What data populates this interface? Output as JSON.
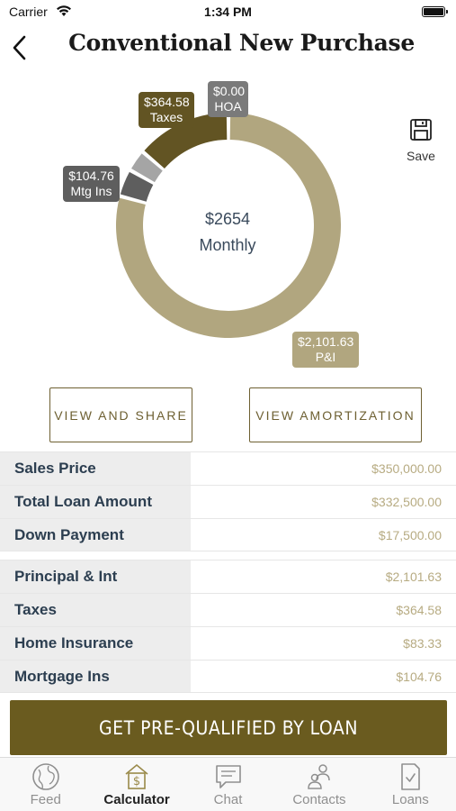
{
  "status_bar": {
    "carrier": "Carrier",
    "time": "1:34 PM"
  },
  "nav": {
    "title": "Conventional New Purchase"
  },
  "save": {
    "label": "Save"
  },
  "chart_data": {
    "type": "pie",
    "center_amount": "$2654",
    "center_label": "Monthly",
    "slices": [
      {
        "name": "P&I",
        "value": 2101.63,
        "label": "$2,101.63",
        "color": "#b1a67f"
      },
      {
        "name": "Mtg Ins",
        "value": 104.76,
        "label": "$104.76",
        "color": "#5e5e5e"
      },
      {
        "name": "Home Insurance",
        "value": 83.33,
        "label": "",
        "color": "#a5a5a5"
      },
      {
        "name": "Taxes",
        "value": 364.58,
        "label": "$364.58",
        "color": "#625423"
      },
      {
        "name": "HOA",
        "value": 0.0,
        "label": "$0.00",
        "color": "#7a7a7a"
      }
    ],
    "callouts": {
      "taxes": {
        "amount": "$364.58",
        "name": "Taxes"
      },
      "hoa": {
        "amount": "$0.00",
        "name": "HOA"
      },
      "mtg_ins": {
        "amount": "$104.76",
        "name": "Mtg Ins"
      },
      "pi": {
        "amount": "$2,101.63",
        "name": "P&I"
      }
    }
  },
  "buttons": {
    "view_share": "VIEW AND SHARE",
    "view_amortization": "VIEW AMORTIZATION"
  },
  "loan_table": [
    {
      "label": "Sales Price",
      "value": "$350,000.00"
    },
    {
      "label": "Total Loan Amount",
      "value": "$332,500.00"
    },
    {
      "label": "Down Payment",
      "value": "$17,500.00"
    }
  ],
  "payment_table": [
    {
      "label": "Principal & Int",
      "value": "$2,101.63"
    },
    {
      "label": "Taxes",
      "value": "$364.58"
    },
    {
      "label": "Home Insurance",
      "value": "$83.33"
    },
    {
      "label": "Mortgage Ins",
      "value": "$104.76"
    }
  ],
  "cta": {
    "label": "GET PRE-QUALIFIED BY LOAN"
  },
  "tabs": [
    {
      "label": "Feed",
      "icon": "globe-icon",
      "active": false
    },
    {
      "label": "Calculator",
      "icon": "calculator-icon",
      "active": true
    },
    {
      "label": "Chat",
      "icon": "chat-icon",
      "active": false
    },
    {
      "label": "Contacts",
      "icon": "contacts-icon",
      "active": false
    },
    {
      "label": "Loans",
      "icon": "loans-icon",
      "active": false
    }
  ],
  "colors": {
    "brand": "#6a5b1f",
    "accent_light": "#b7ab82",
    "row_label_bg": "#ededed"
  }
}
